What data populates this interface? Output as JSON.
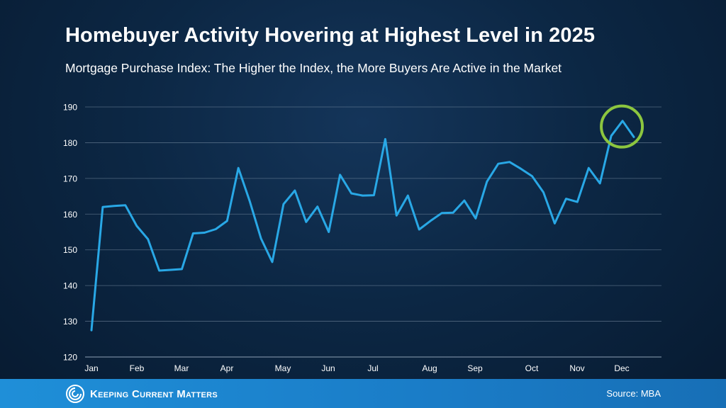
{
  "header": {
    "title": "Homebuyer Activity Hovering at Highest Level in 2025",
    "subtitle": "Mortgage Purchase Index: The Higher the Index, the More Buyers Are Active in the Market"
  },
  "footer": {
    "brand": "Keeping Current Matters",
    "source": "Source: MBA"
  },
  "colors": {
    "line": "#29a8e6",
    "highlight": "#8cc63f",
    "grid": "#7f93a8",
    "text": "#ffffff"
  },
  "chart_data": {
    "type": "line",
    "title": "",
    "xlabel": "",
    "ylabel": "",
    "ylim": [
      120,
      190
    ],
    "yticks": [
      120,
      130,
      140,
      150,
      160,
      170,
      180,
      190
    ],
    "month_labels": [
      "Jan",
      "Feb",
      "Mar",
      "Apr",
      "May",
      "Jun",
      "Jul",
      "Aug",
      "Sep",
      "Oct",
      "Nov",
      "Dec"
    ],
    "grid": true,
    "legend": "none",
    "series": [
      {
        "name": "",
        "values": [
          127.5,
          162,
          162.3,
          162.5,
          156.7,
          153,
          144.2,
          144.4,
          144.6,
          154.6,
          154.8,
          155.8,
          158.1,
          172.9,
          163.7,
          153.2,
          146.6,
          162.8,
          166.6,
          157.8,
          162.1,
          155,
          171,
          165.8,
          165.2,
          165.3,
          181,
          159.6,
          165.2,
          155.7,
          158.1,
          160.3,
          160.4,
          163.8,
          158.8,
          169.1,
          174.1,
          174.6,
          172.7,
          170.6,
          166.1,
          157.4,
          164.3,
          163.4,
          172.9,
          168.6,
          181.9,
          186.1,
          181.6
        ]
      }
    ],
    "annotation": {
      "type": "circle",
      "target": "peak",
      "value": 186.1
    }
  }
}
